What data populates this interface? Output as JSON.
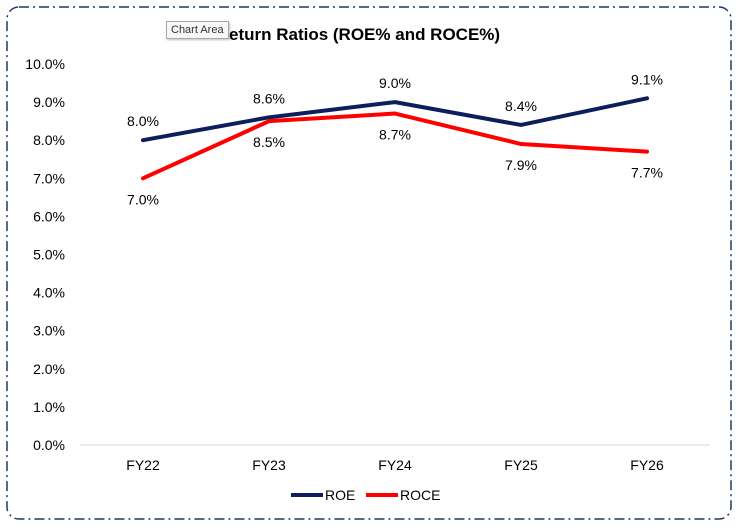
{
  "tooltip": "Chart Area",
  "chart_data": {
    "type": "line",
    "title": "eturn Ratios (ROE% and ROCE%)",
    "categories": [
      "FY22",
      "FY23",
      "FY24",
      "FY25",
      "FY26"
    ],
    "series": [
      {
        "name": "ROE",
        "color": "#0b1f5c",
        "values": [
          8.0,
          8.6,
          9.0,
          8.4,
          9.1
        ],
        "labels": [
          "8.0%",
          "8.6%",
          "9.0%",
          "8.4%",
          "9.1%"
        ]
      },
      {
        "name": "ROCE",
        "color": "#ff0000",
        "values": [
          7.0,
          8.5,
          8.7,
          7.9,
          7.7
        ],
        "labels": [
          "7.0%",
          "8.5%",
          "8.7%",
          "7.9%",
          "7.7%"
        ]
      }
    ],
    "y_ticks": [
      "0.0%",
      "1.0%",
      "2.0%",
      "3.0%",
      "4.0%",
      "5.0%",
      "6.0%",
      "7.0%",
      "8.0%",
      "9.0%",
      "10.0%"
    ],
    "ylim": [
      0,
      10
    ],
    "grid": false,
    "legend_position": "bottom"
  }
}
